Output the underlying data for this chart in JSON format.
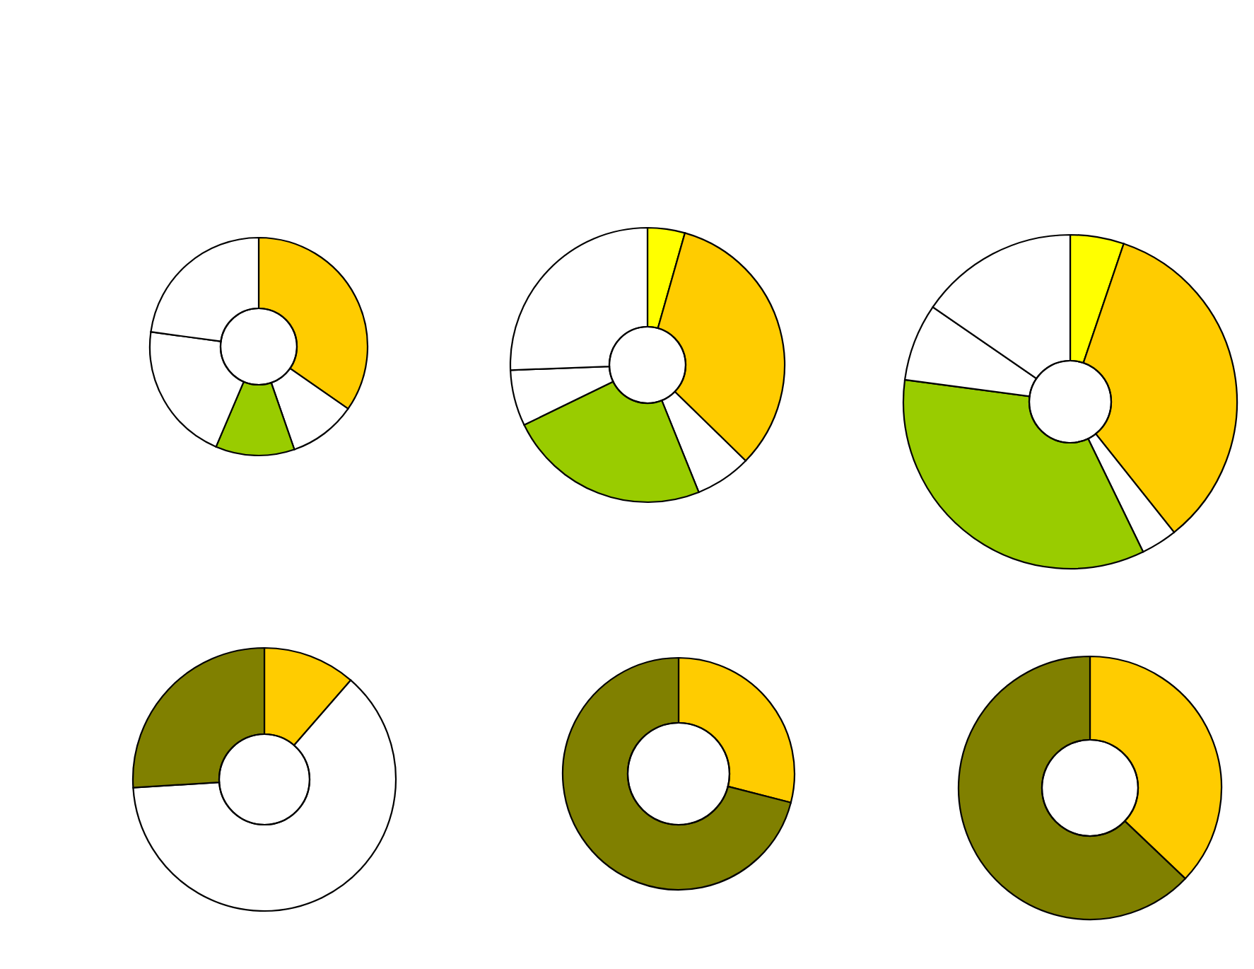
{
  "chart_data": [
    {
      "type": "donut",
      "categories": [
        null,
        null,
        null,
        null,
        null
      ],
      "values": [
        34.6,
        10,
        11.7,
        20.7,
        22.8
      ],
      "colors": [
        "#ffcc00",
        "#ffffff",
        "#99cc00",
        "#ffffff",
        "#ffffff"
      ]
    },
    {
      "type": "donut",
      "categories": [
        null,
        null,
        null,
        null,
        null,
        null
      ],
      "values": [
        4.4,
        32.9,
        6.6,
        23.9,
        6.6,
        25.6
      ],
      "colors": [
        "#ffff00",
        "#ffcc00",
        "#ffffff",
        "#99cc00",
        "#ffffff",
        "#ffffff"
      ]
    },
    {
      "type": "donut",
      "categories": [
        null,
        null,
        null,
        null,
        null,
        null
      ],
      "values": [
        5.2,
        34.1,
        3.5,
        34.3,
        7.5,
        15.4
      ],
      "colors": [
        "#ffff00",
        "#ffcc00",
        "#ffffff",
        "#99cc00",
        "#ffffff",
        "#ffffff"
      ]
    },
    {
      "type": "donut",
      "categories": [
        null,
        null,
        null
      ],
      "values": [
        11.4,
        62.6,
        26
      ],
      "colors": [
        "#ffcc00",
        "#ffffff",
        "#808000"
      ]
    },
    {
      "type": "donut",
      "categories": [
        null,
        null
      ],
      "values": [
        29,
        71
      ],
      "colors": [
        "#ffcc00",
        "#808000"
      ]
    },
    {
      "type": "donut",
      "categories": [
        null,
        null
      ],
      "values": [
        37.1,
        62.9
      ],
      "colors": [
        "#ffcc00",
        "#808000"
      ]
    }
  ]
}
